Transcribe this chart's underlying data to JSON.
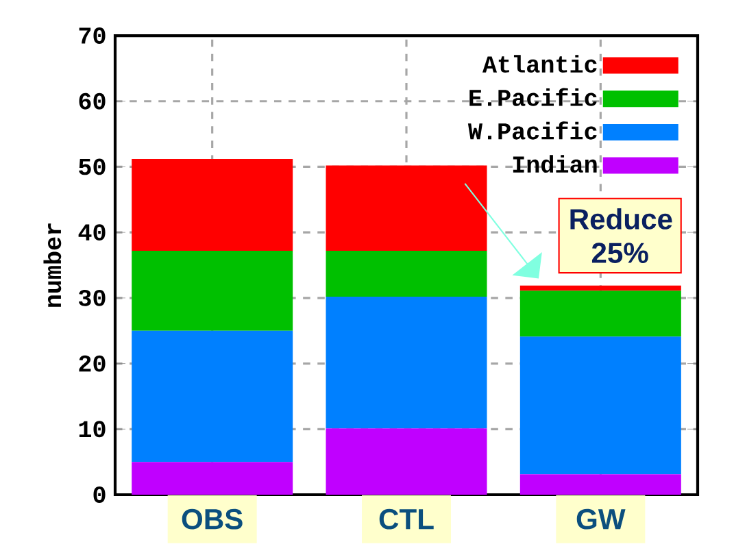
{
  "chart_data": {
    "type": "bar",
    "stacked": true,
    "ylabel": "number",
    "categories": [
      "OBS",
      "CTL",
      "GW"
    ],
    "series": [
      {
        "name": "Indian",
        "color": "#c000ff",
        "values": [
          5,
          10.1,
          3.1
        ]
      },
      {
        "name": "W.Pacific",
        "color": "#0080ff",
        "values": [
          20,
          20.1,
          21
        ]
      },
      {
        "name": "E.Pacific",
        "color": "#00c000",
        "values": [
          12.2,
          7,
          7
        ]
      },
      {
        "name": "Atlantic",
        "color": "#ff0000",
        "values": [
          14,
          13,
          0.8
        ]
      }
    ],
    "ylim": [
      0,
      70
    ],
    "yticks": [
      0,
      10,
      20,
      30,
      40,
      50,
      60,
      70
    ],
    "grid": true,
    "legend": "top right",
    "annotations": [
      "Reduce 25%"
    ]
  }
}
